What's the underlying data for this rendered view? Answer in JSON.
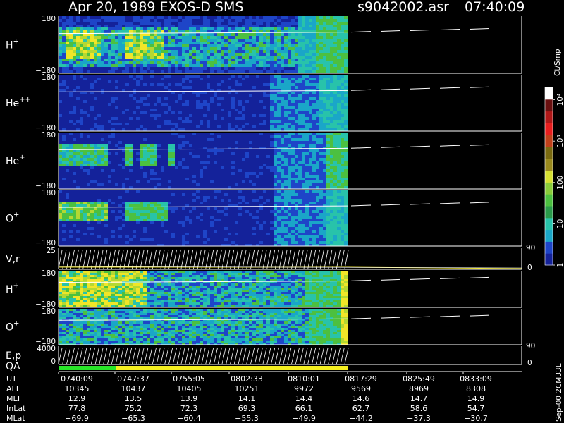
{
  "header": {
    "title": "Apr 20, 1989    EXOS-D SMS",
    "file": "s9042002.asr",
    "time": "07:40:09"
  },
  "colors": {
    "background": "#000000",
    "navy": "#14229a",
    "blue": "#1e45c8",
    "cyan": "#1aa6c8",
    "teal": "#28c3aa",
    "green": "#4cc040",
    "lime": "#b4d832",
    "yellow": "#f0e628",
    "qa_green": "#28e628",
    "qa_yellow": "#f5f020"
  },
  "chart_data": {
    "type": "heatmap",
    "colorbar": {
      "unit": "Ct/Smp",
      "ticks": [
        {
          "label": "1",
          "value": 1
        },
        {
          "label": "10",
          "value": 10
        },
        {
          "label": "100",
          "value": 100
        },
        {
          "label": "10³",
          "value": 1000
        },
        {
          "label": "10⁴",
          "value": 10000
        }
      ],
      "colors": [
        "#14229a",
        "#1e45c8",
        "#1aa6c8",
        "#28c3aa",
        "#2a9a4a",
        "#4cc040",
        "#8acc3a",
        "#d6e032",
        "#9a8a1e",
        "#7a6a10",
        "#c0401a",
        "#e81e1e",
        "#b01818",
        "#6a1010",
        "#ffffff"
      ]
    },
    "panels": [
      {
        "label": "H",
        "sup": "+",
        "ymax": "180",
        "ymin": "−180",
        "scheme": "h1"
      },
      {
        "label": "He",
        "sup": "++",
        "ymax": "180",
        "ymin": "−180",
        "scheme": "hepp"
      },
      {
        "label": "He",
        "sup": "+",
        "ymax": "180",
        "ymin": "−180",
        "scheme": "hep"
      },
      {
        "label": "O",
        "sup": "+",
        "ymax": "180",
        "ymin": "−180",
        "scheme": "op"
      },
      {
        "label": "V,r",
        "sup": "",
        "ymax": "25",
        "ymin": "",
        "right_top": "90",
        "right_bottom": "0",
        "scheme": "vr"
      },
      {
        "label": "H",
        "sup": "+",
        "ymax": "180",
        "ymin": "−180",
        "scheme": "h2"
      },
      {
        "label": "O",
        "sup": "+",
        "ymax": "180",
        "ymin": "−180",
        "scheme": "o2"
      },
      {
        "label": "E,p",
        "sup": "",
        "ymax": "4000",
        "ymin": "0",
        "right_top": "90",
        "right_bottom": "0",
        "scheme": "ep"
      }
    ],
    "qa": {
      "label": "QA"
    },
    "table": {
      "rows": [
        {
          "name": "UT",
          "values": [
            "0740:09",
            "0747:37",
            "0755:05",
            "0802:33",
            "0810:01",
            "0817:29",
            "0825:49",
            "0833:09"
          ]
        },
        {
          "name": "ALT",
          "values": [
            "10345",
            "10437",
            "10405",
            "10251",
            "9972",
            "9569",
            "8969",
            "8308"
          ]
        },
        {
          "name": "MLT",
          "values": [
            "12.9",
            "13.5",
            "13.9",
            "14.1",
            "14.4",
            "14.6",
            "14.7",
            "14.9"
          ]
        },
        {
          "name": "InLat",
          "values": [
            "77.8",
            "75.2",
            "72.3",
            "69.3",
            "66.1",
            "62.7",
            "58.6",
            "54.7"
          ]
        },
        {
          "name": "MLat",
          "values": [
            "−69.9",
            "−65.3",
            "−60.4",
            "−55.3",
            "−49.9",
            "−44.2",
            "−37.3",
            "−30.7"
          ]
        }
      ]
    }
  },
  "footer": {
    "side_label": "Sep-00 2CM33L"
  }
}
